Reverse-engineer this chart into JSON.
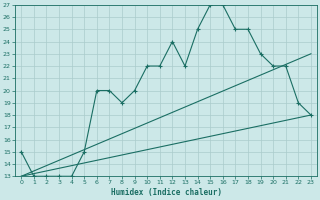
{
  "xlabel": "Humidex (Indice chaleur)",
  "bg_color": "#cce8e8",
  "grid_color": "#aacccc",
  "line_color": "#1a6e63",
  "xlim": [
    -0.5,
    23.5
  ],
  "ylim": [
    13,
    27
  ],
  "xticks": [
    0,
    1,
    2,
    3,
    4,
    5,
    6,
    7,
    8,
    9,
    10,
    11,
    12,
    13,
    14,
    15,
    16,
    17,
    18,
    19,
    20,
    21,
    22,
    23
  ],
  "yticks": [
    13,
    14,
    15,
    16,
    17,
    18,
    19,
    20,
    21,
    22,
    23,
    24,
    25,
    26,
    27
  ],
  "curve1_x": [
    0,
    1,
    2,
    3,
    4,
    5,
    6,
    7,
    8,
    9,
    10,
    11,
    12,
    13,
    14,
    15,
    16,
    17,
    18,
    19,
    20,
    21,
    22,
    23
  ],
  "curve1_y": [
    15,
    13,
    13,
    13,
    13,
    15,
    20,
    20,
    19,
    20,
    22,
    22,
    24,
    22,
    25,
    27,
    27,
    25,
    25,
    23,
    22,
    22,
    19,
    18
  ],
  "curve2_x": [
    0,
    23
  ],
  "curve2_y": [
    13,
    23
  ],
  "curve3_x": [
    0,
    23
  ],
  "curve3_y": [
    13,
    18
  ],
  "marker": "+"
}
